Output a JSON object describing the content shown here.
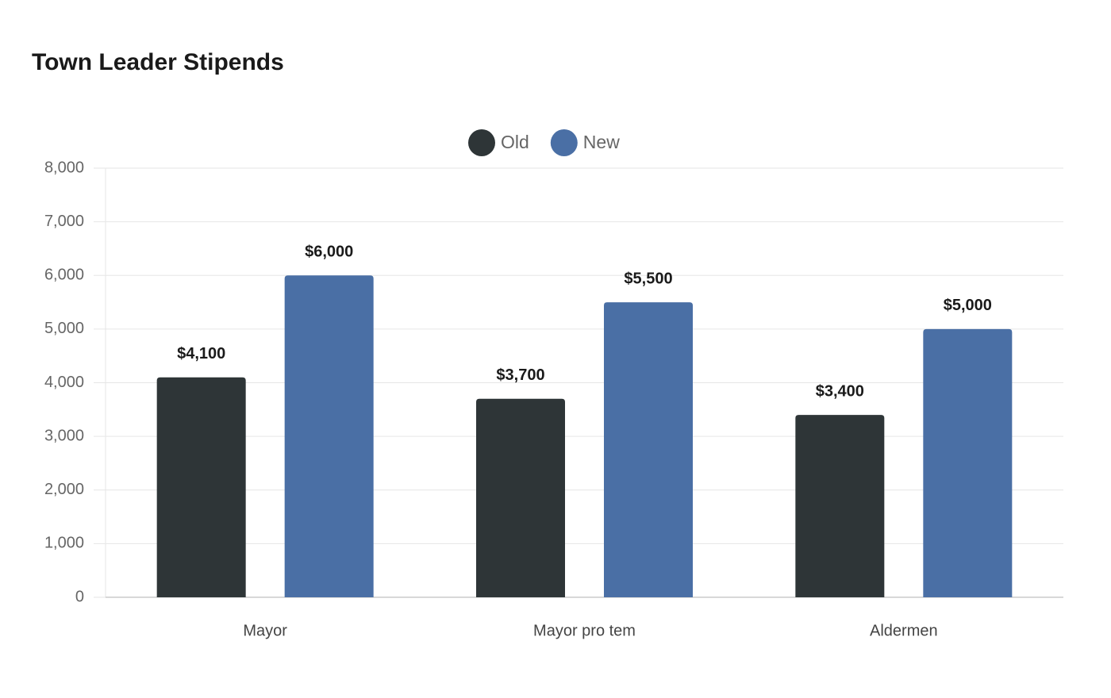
{
  "chart_data": {
    "type": "bar",
    "title": "Town Leader Stipends",
    "categories": [
      "Mayor",
      "Mayor pro tem",
      "Aldermen"
    ],
    "series": [
      {
        "name": "Old",
        "color": "#2e3537",
        "values": [
          4100,
          3700,
          3400
        ],
        "value_labels": [
          "$4,100",
          "$3,700",
          "$3,400"
        ]
      },
      {
        "name": "New",
        "color": "#4a6fa5",
        "values": [
          6000,
          5500,
          5000
        ],
        "value_labels": [
          "$6,000",
          "$5,500",
          "$5,000"
        ]
      }
    ],
    "ylim": [
      0,
      8000
    ],
    "yticks": [
      0,
      {
        "value": 1000,
        "label": "1,000"
      },
      {
        "value": 2000,
        "label": "2,000"
      },
      {
        "value": 3000,
        "label": "3,000"
      },
      {
        "value": 4000,
        "label": "4,000"
      },
      {
        "value": 5000,
        "label": "5,000"
      },
      {
        "value": 6000,
        "label": "6,000"
      },
      {
        "value": 7000,
        "label": "7,000"
      },
      {
        "value": 8000,
        "label": "8,000"
      }
    ],
    "grid": true,
    "legend": "top"
  }
}
